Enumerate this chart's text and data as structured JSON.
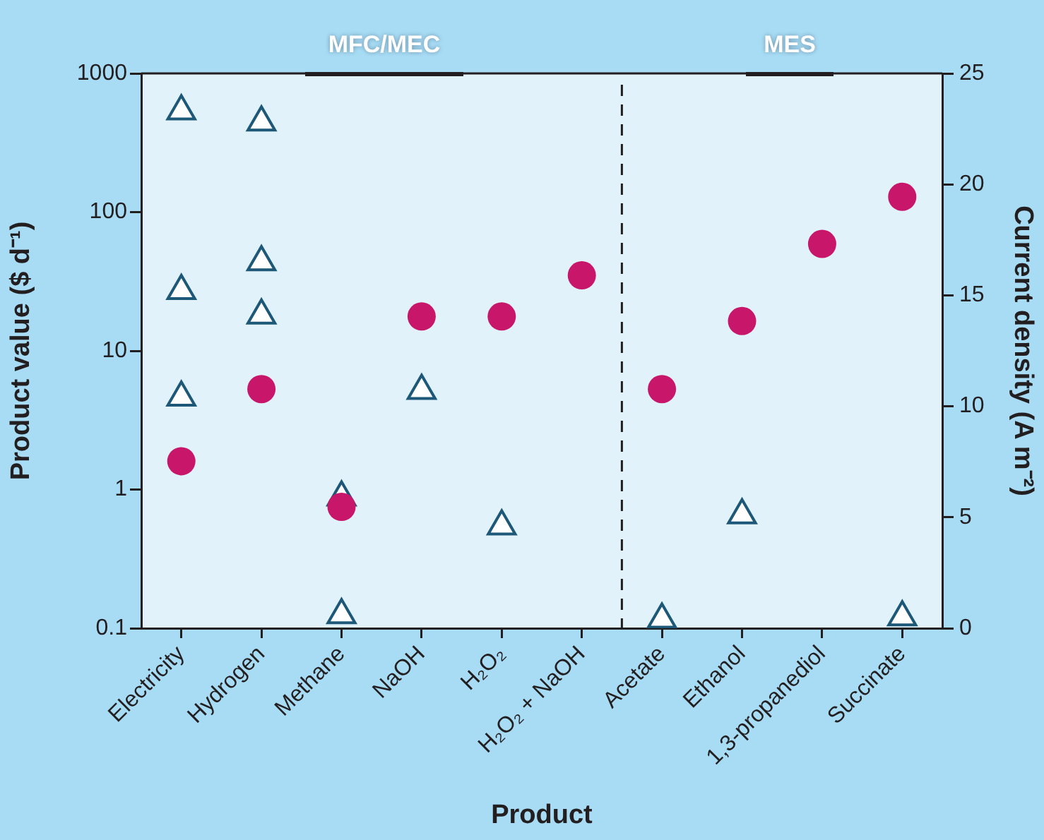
{
  "chart_data": {
    "type": "scatter",
    "xlabel": "Product",
    "ylabel": "Product value ($ d⁻¹)",
    "y2label": "Current density (A m⁻²)",
    "categories": [
      "Electricity",
      "Hydrogen",
      "Methane",
      "NaOH",
      "H₂O₂",
      "H₂O₂ + NaOH",
      "Acetate",
      "Ethanol",
      "1,3-propanediol",
      "Succinate"
    ],
    "series": [
      {
        "color": "#c8176b",
        "marker": "circle",
        "values": [
          1.6,
          5.3,
          0.75,
          17.7,
          17.7,
          35,
          5.3,
          16.4,
          59,
          129
        ]
      },
      {
        "axis": "y2",
        "color": "#ffffff",
        "marker": "triangle",
        "x": [
          "Electricity",
          "Electricity",
          "Electricity",
          "Hydrogen",
          "Hydrogen",
          "Hydrogen",
          "Methane",
          "Methane",
          "NaOH",
          "H₂O₂",
          "Acetate",
          "Ethanol",
          "Succinate"
        ],
        "values": [
          23.3,
          15.2,
          10.4,
          22.8,
          16.5,
          14.1,
          5.9,
          0.6,
          10.7,
          4.6,
          0.4,
          5.1,
          0.5
        ]
      }
    ],
    "log": "y",
    "ylim": [
      0.1,
      1000
    ],
    "yticks": [
      0.1,
      1,
      10,
      100,
      1000
    ],
    "y2lim": [
      0,
      25
    ],
    "y2ticks": [
      0,
      5,
      10,
      15,
      20,
      25
    ],
    "annotations": [
      "MFC/MEC",
      "MES"
    ]
  }
}
